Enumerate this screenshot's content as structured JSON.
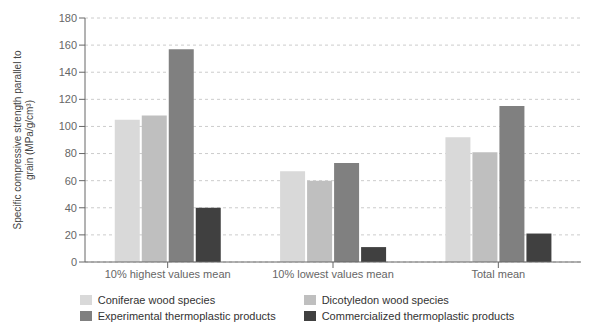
{
  "chart_data": {
    "type": "bar",
    "ylabel": "Specific compressive strength parallel to\ngrain (MPa/g/cm³)",
    "categories": [
      "10% highest values mean",
      "10% lowest values mean",
      "Total mean"
    ],
    "series": [
      {
        "name": "Coniferae wood species",
        "color": "#d9d9d9",
        "values": [
          105,
          67,
          92
        ]
      },
      {
        "name": "Dicotyledon wood species",
        "color": "#bfbfbf",
        "values": [
          108,
          60,
          81
        ]
      },
      {
        "name": "Experimental thermoplastic products",
        "color": "#808080",
        "values": [
          157,
          73,
          115
        ]
      },
      {
        "name": "Commercialized thermoplastic products",
        "color": "#404040",
        "values": [
          40,
          11,
          21
        ]
      }
    ],
    "ylim": [
      0,
      180
    ],
    "yticks": [
      0,
      20,
      40,
      60,
      80,
      100,
      120,
      140,
      160,
      180
    ],
    "grid": true,
    "legend": "bottom"
  }
}
